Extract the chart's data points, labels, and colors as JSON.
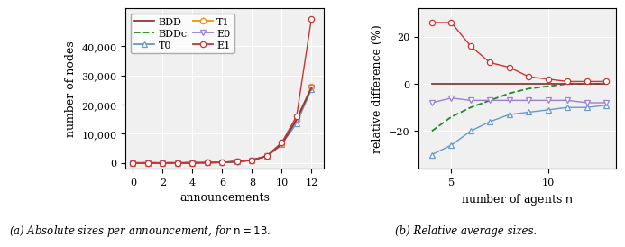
{
  "left": {
    "xlabel": "announcements",
    "ylabel": "number of nodes",
    "xlim": [
      -0.5,
      12.8
    ],
    "ylim": [
      -2000,
      53000
    ],
    "yticks": [
      0,
      10000,
      20000,
      30000,
      40000
    ],
    "ytick_labels": [
      "0",
      "10,000",
      "20,000",
      "30,000",
      "40,000"
    ],
    "xticks": [
      0,
      2,
      4,
      6,
      8,
      10,
      12
    ],
    "series_order": [
      "BDD",
      "BDDc",
      "T0",
      "T1",
      "E0",
      "E1"
    ],
    "series": {
      "BDD": {
        "x": [
          0,
          1,
          2,
          3,
          4,
          5,
          6,
          7,
          8,
          9,
          10,
          11,
          12
        ],
        "y": [
          8,
          10,
          18,
          28,
          48,
          92,
          195,
          480,
          960,
          2350,
          6400,
          14800,
          25800
        ],
        "color": "#8B3A3A",
        "ls": "solid",
        "marker": null,
        "lw": 1.3,
        "zorder": 4
      },
      "BDDc": {
        "x": [
          0,
          1,
          2,
          3,
          4,
          5,
          6,
          7,
          8,
          9,
          10,
          11,
          12
        ],
        "y": [
          8,
          10,
          18,
          28,
          48,
          92,
          195,
          480,
          960,
          2350,
          6400,
          14800,
          25800
        ],
        "color": "#228B22",
        "ls": "dashed",
        "marker": null,
        "lw": 1.3,
        "zorder": 3
      },
      "T0": {
        "x": [
          0,
          1,
          2,
          3,
          4,
          5,
          6,
          7,
          8,
          9,
          10,
          11,
          12
        ],
        "y": [
          8,
          10,
          18,
          28,
          48,
          92,
          195,
          480,
          960,
          2350,
          6400,
          13500,
          25200
        ],
        "color": "#6699CC",
        "ls": "solid",
        "marker": "^",
        "lw": 1.0,
        "zorder": 3
      },
      "T1": {
        "x": [
          0,
          1,
          2,
          3,
          4,
          5,
          6,
          7,
          8,
          9,
          10,
          11,
          12
        ],
        "y": [
          8,
          10,
          18,
          28,
          48,
          92,
          195,
          480,
          960,
          2350,
          6400,
          14800,
          26200
        ],
        "color": "#FF8C00",
        "ls": "solid",
        "marker": "o",
        "lw": 1.0,
        "zorder": 3
      },
      "E0": {
        "x": [
          0,
          1,
          2,
          3,
          4,
          5,
          6,
          7,
          8,
          9,
          10,
          11,
          12
        ],
        "y": [
          8,
          10,
          18,
          28,
          48,
          92,
          195,
          480,
          960,
          2350,
          6400,
          14800,
          25800
        ],
        "color": "#9B7FD4",
        "ls": "solid",
        "marker": "v",
        "lw": 1.0,
        "zorder": 3
      },
      "E1": {
        "x": [
          0,
          1,
          2,
          3,
          4,
          5,
          6,
          7,
          8,
          9,
          10,
          11,
          12
        ],
        "y": [
          8,
          10,
          18,
          28,
          48,
          92,
          195,
          480,
          960,
          2500,
          7000,
          16000,
          49500
        ],
        "color": "#CC3333",
        "ls": "solid",
        "marker": "o",
        "lw": 1.0,
        "zorder": 5
      }
    },
    "caption": "(a) Absolute sizes per announcement, for $n = 13$."
  },
  "right": {
    "xlabel": "number of agents $n$",
    "ylabel": "relative difference (%)",
    "xlim": [
      3.3,
      13.5
    ],
    "ylim": [
      -36,
      32
    ],
    "yticks": [
      -20,
      0,
      20
    ],
    "xticks": [
      5,
      10
    ],
    "xticklabels": [
      "5",
      "10"
    ],
    "series_order": [
      "BDD",
      "BDDc",
      "T0",
      "E0",
      "E1"
    ],
    "series": {
      "BDD": {
        "x": [
          4,
          5,
          6,
          7,
          8,
          9,
          10,
          11,
          12,
          13
        ],
        "y": [
          0,
          0,
          0,
          0,
          0,
          0,
          0,
          0,
          0,
          0
        ],
        "color": "#8B3A3A",
        "ls": "solid",
        "marker": null,
        "lw": 1.3,
        "zorder": 4
      },
      "BDDc": {
        "x": [
          4,
          5,
          6,
          7,
          8,
          9,
          10,
          11,
          12,
          13
        ],
        "y": [
          -20,
          -14,
          -10,
          -7,
          -4,
          -2,
          -1,
          0,
          0,
          0
        ],
        "color": "#228B22",
        "ls": "dashed",
        "marker": null,
        "lw": 1.3,
        "zorder": 3
      },
      "T0": {
        "x": [
          4,
          5,
          6,
          7,
          8,
          9,
          10,
          11,
          12,
          13
        ],
        "y": [
          -30,
          -26,
          -20,
          -16,
          -13,
          -12,
          -11,
          -10,
          -10,
          -9
        ],
        "color": "#6699CC",
        "ls": "solid",
        "marker": "^",
        "lw": 1.0,
        "zorder": 3
      },
      "E0": {
        "x": [
          4,
          5,
          6,
          7,
          8,
          9,
          10,
          11,
          12,
          13
        ],
        "y": [
          -8,
          -6,
          -7,
          -7,
          -7,
          -7,
          -7,
          -7,
          -8,
          -8
        ],
        "color": "#9B7FD4",
        "ls": "solid",
        "marker": "v",
        "lw": 1.0,
        "zorder": 3
      },
      "E1": {
        "x": [
          4,
          5,
          6,
          7,
          8,
          9,
          10,
          11,
          12,
          13
        ],
        "y": [
          26,
          26,
          16,
          9,
          7,
          3,
          2,
          1,
          1,
          1
        ],
        "color": "#CC3333",
        "ls": "solid",
        "marker": "o",
        "lw": 1.0,
        "zorder": 5
      }
    },
    "caption": "(b) Relative average sizes."
  },
  "legend": {
    "order": [
      "BDD",
      "BDDc",
      "T0",
      "T1",
      "E0",
      "E1"
    ],
    "BDD": {
      "color": "#8B3A3A",
      "ls": "solid",
      "marker": null,
      "label": "BDD"
    },
    "BDDc": {
      "color": "#228B22",
      "ls": "dashed",
      "marker": null,
      "label": "BDDc"
    },
    "T0": {
      "color": "#6699CC",
      "ls": "solid",
      "marker": "^",
      "label": "T0"
    },
    "T1": {
      "color": "#FF8C00",
      "ls": "solid",
      "marker": "o",
      "label": "T1"
    },
    "E0": {
      "color": "#9B7FD4",
      "ls": "solid",
      "marker": "v",
      "label": "E0"
    },
    "E1": {
      "color": "#CC3333",
      "ls": "solid",
      "marker": "o",
      "label": "E1"
    }
  }
}
